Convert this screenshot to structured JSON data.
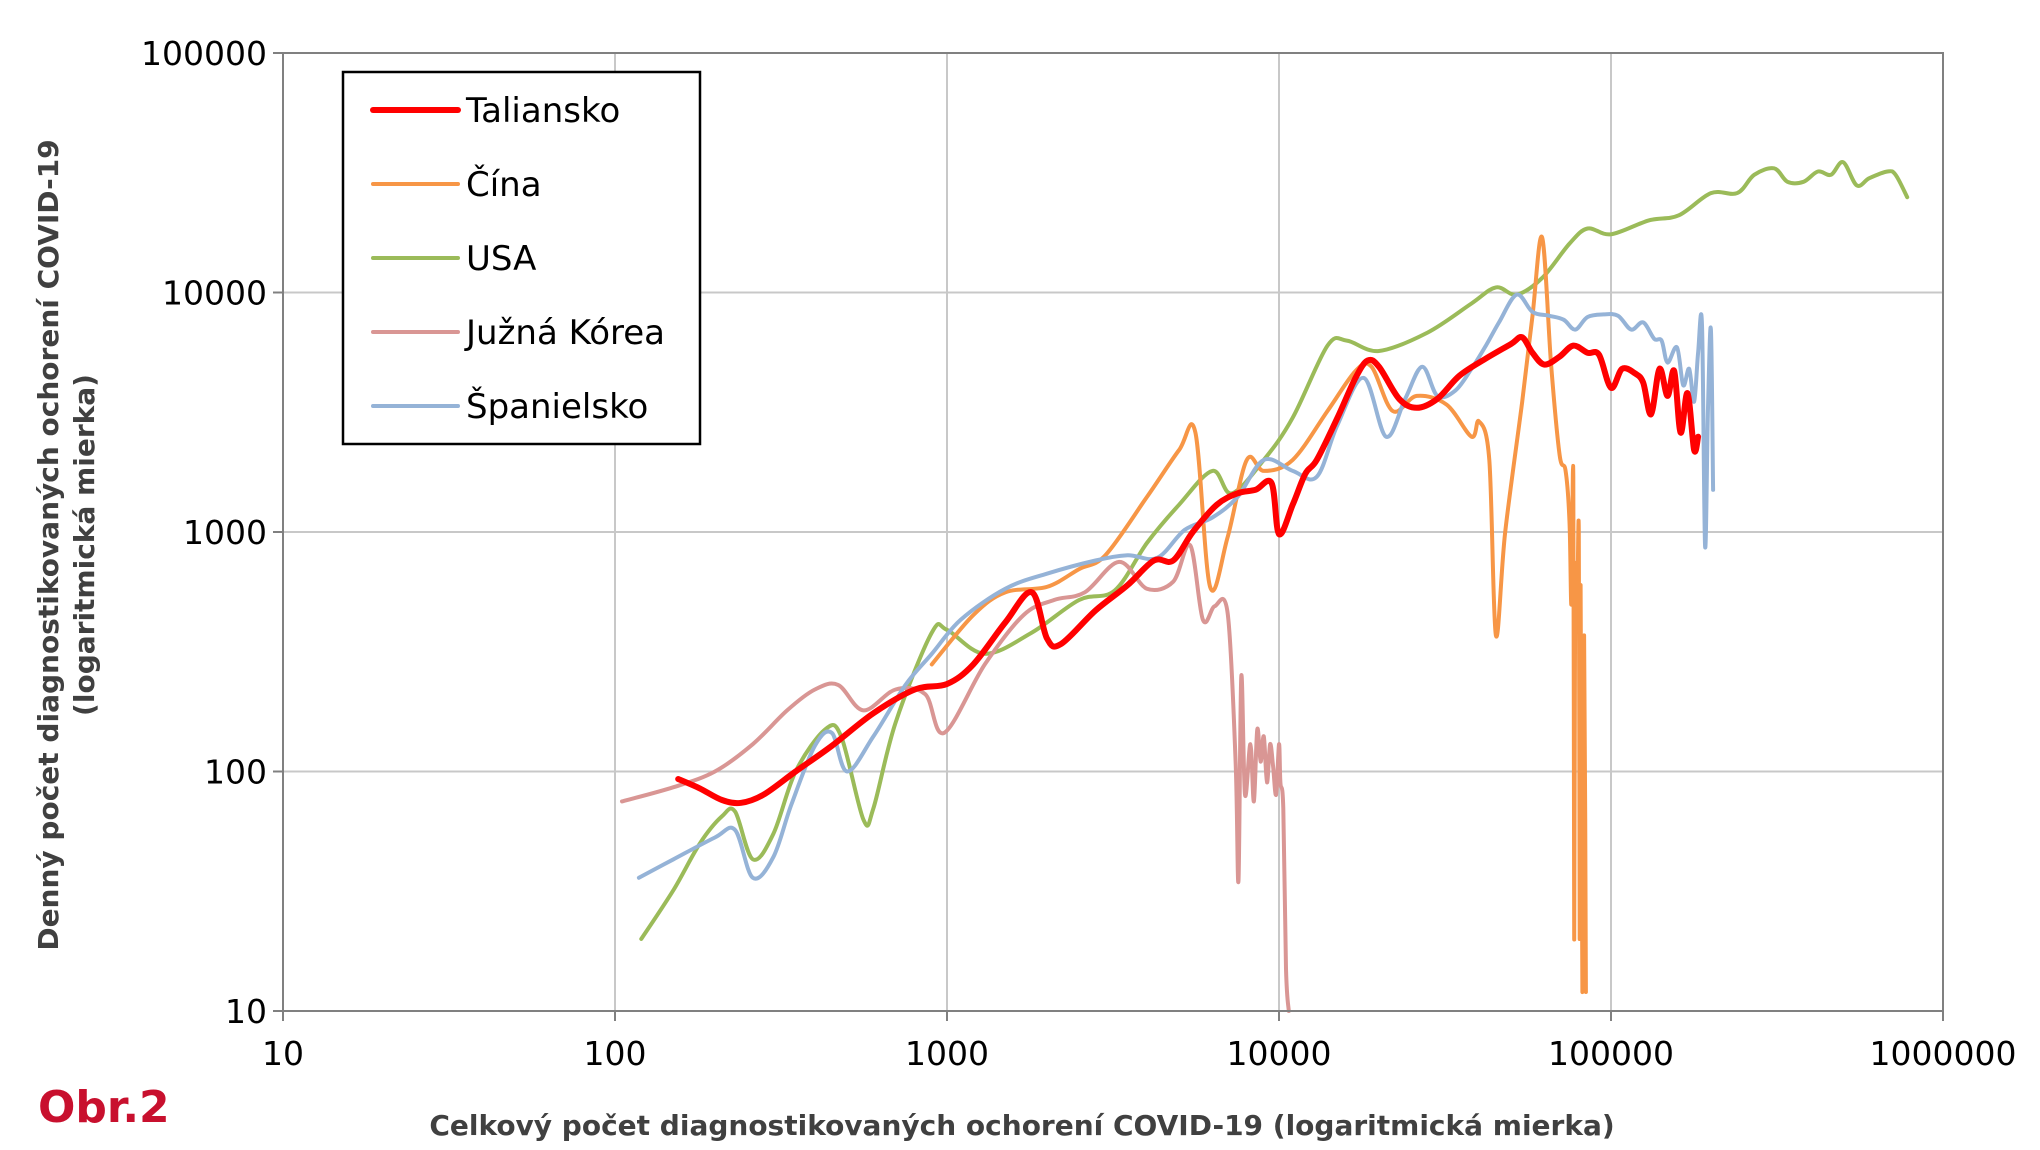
{
  "figure_label": "Obr.2",
  "chart_data": {
    "type": "line",
    "xlabel": "Celkový počet diagnostikovaných ochorení COVID-19 (logaritmická mierka)",
    "ylabel_lines": [
      "Denný počet diagnostikovaných ochorení COVID-19",
      "(logaritmická mierka)"
    ],
    "x_scale": "log",
    "y_scale": "log",
    "xlim": [
      10,
      1000000
    ],
    "ylim": [
      10,
      100000
    ],
    "x_ticks": [
      "10",
      "100",
      "1000",
      "10000",
      "100000",
      "1000000"
    ],
    "y_ticks": [
      "10",
      "100",
      "1000",
      "10000",
      "100000"
    ],
    "grid": true,
    "legend_position": "top-left",
    "series": [
      {
        "name": "Taliansko",
        "color": "#ff0000",
        "points": [
          [
            155,
            93
          ],
          [
            180,
            85
          ],
          [
            210,
            76
          ],
          [
            240,
            74
          ],
          [
            280,
            80
          ],
          [
            350,
            100
          ],
          [
            450,
            128
          ],
          [
            600,
            175
          ],
          [
            800,
            220
          ],
          [
            1000,
            232
          ],
          [
            1200,
            280
          ],
          [
            1500,
            420
          ],
          [
            1800,
            560
          ],
          [
            2000,
            360
          ],
          [
            2200,
            340
          ],
          [
            2800,
            470
          ],
          [
            3500,
            600
          ],
          [
            4200,
            760
          ],
          [
            4800,
            760
          ],
          [
            5500,
            1000
          ],
          [
            6500,
            1300
          ],
          [
            7500,
            1450
          ],
          [
            8500,
            1500
          ],
          [
            9500,
            1600
          ],
          [
            10000,
            980
          ],
          [
            11000,
            1300
          ],
          [
            12000,
            1750
          ],
          [
            13000,
            2000
          ],
          [
            15000,
            3000
          ],
          [
            17000,
            4400
          ],
          [
            18500,
            5200
          ],
          [
            20000,
            4900
          ],
          [
            23000,
            3600
          ],
          [
            26000,
            3300
          ],
          [
            30000,
            3600
          ],
          [
            35000,
            4500
          ],
          [
            42000,
            5300
          ],
          [
            50000,
            6100
          ],
          [
            54000,
            6500
          ],
          [
            58000,
            5600
          ],
          [
            63000,
            5000
          ],
          [
            70000,
            5400
          ],
          [
            77000,
            6000
          ],
          [
            85000,
            5600
          ],
          [
            92000,
            5500
          ],
          [
            100000,
            4000
          ],
          [
            108000,
            4800
          ],
          [
            118000,
            4600
          ],
          [
            125000,
            4200
          ],
          [
            132000,
            3100
          ],
          [
            140000,
            4800
          ],
          [
            148000,
            3700
          ],
          [
            155000,
            4700
          ],
          [
            162000,
            2600
          ],
          [
            170000,
            3800
          ],
          [
            178000,
            2200
          ],
          [
            183000,
            2500
          ]
        ]
      },
      {
        "name": "Čína",
        "color": "#f79646",
        "points": [
          [
            900,
            280
          ],
          [
            1200,
            450
          ],
          [
            1500,
            560
          ],
          [
            2000,
            590
          ],
          [
            2500,
            700
          ],
          [
            3000,
            800
          ],
          [
            4000,
            1400
          ],
          [
            5000,
            2200
          ],
          [
            5600,
            2600
          ],
          [
            6200,
            590
          ],
          [
            7000,
            950
          ],
          [
            8000,
            2000
          ],
          [
            9000,
            1800
          ],
          [
            11000,
            2000
          ],
          [
            14000,
            3200
          ],
          [
            17000,
            4700
          ],
          [
            19000,
            4900
          ],
          [
            22000,
            3200
          ],
          [
            26000,
            3700
          ],
          [
            32000,
            3400
          ],
          [
            38000,
            2500
          ],
          [
            40000,
            2900
          ],
          [
            43000,
            2000
          ],
          [
            45000,
            370
          ],
          [
            48000,
            1000
          ],
          [
            54000,
            3500
          ],
          [
            58000,
            8000
          ],
          [
            62000,
            17000
          ],
          [
            66000,
            5000
          ],
          [
            70000,
            2100
          ],
          [
            73000,
            1800
          ],
          [
            75000,
            1100
          ],
          [
            76000,
            500
          ],
          [
            77000,
            1700
          ],
          [
            77500,
            20
          ],
          [
            78000,
            650
          ],
          [
            79000,
            400
          ],
          [
            80000,
            1000
          ],
          [
            80500,
            20
          ],
          [
            81000,
            600
          ],
          [
            82000,
            12
          ],
          [
            83000,
            370
          ],
          [
            84000,
            12
          ]
        ]
      },
      {
        "name": "USA",
        "color": "#9bbb59",
        "points": [
          [
            120,
            20
          ],
          [
            150,
            32
          ],
          [
            180,
            50
          ],
          [
            210,
            65
          ],
          [
            230,
            68
          ],
          [
            260,
            43
          ],
          [
            300,
            55
          ],
          [
            350,
            100
          ],
          [
            430,
            150
          ],
          [
            480,
            140
          ],
          [
            560,
            63
          ],
          [
            600,
            70
          ],
          [
            700,
            160
          ],
          [
            900,
            380
          ],
          [
            1000,
            390
          ],
          [
            1300,
            310
          ],
          [
            1800,
            380
          ],
          [
            2500,
            520
          ],
          [
            3200,
            570
          ],
          [
            4000,
            900
          ],
          [
            5000,
            1300
          ],
          [
            6300,
            1800
          ],
          [
            7200,
            1450
          ],
          [
            9000,
            2000
          ],
          [
            11000,
            3000
          ],
          [
            14000,
            6000
          ],
          [
            16000,
            6300
          ],
          [
            20000,
            5700
          ],
          [
            28000,
            6800
          ],
          [
            38000,
            9000
          ],
          [
            45000,
            10500
          ],
          [
            52000,
            9800
          ],
          [
            62000,
            11500
          ],
          [
            75000,
            16000
          ],
          [
            85000,
            18500
          ],
          [
            100000,
            17500
          ],
          [
            130000,
            20000
          ],
          [
            160000,
            21000
          ],
          [
            200000,
            26000
          ],
          [
            240000,
            26000
          ],
          [
            270000,
            31000
          ],
          [
            310000,
            33000
          ],
          [
            340000,
            29000
          ],
          [
            380000,
            29000
          ],
          [
            420000,
            32000
          ],
          [
            460000,
            31000
          ],
          [
            500000,
            35000
          ],
          [
            550000,
            28000
          ],
          [
            600000,
            30000
          ],
          [
            680000,
            32000
          ],
          [
            720000,
            31000
          ],
          [
            780000,
            25000
          ]
        ]
      },
      {
        "name": "Južná Kórea",
        "color": "#d99694",
        "points": [
          [
            105,
            75
          ],
          [
            150,
            86
          ],
          [
            200,
            100
          ],
          [
            260,
            130
          ],
          [
            330,
            180
          ],
          [
            400,
            220
          ],
          [
            470,
            230
          ],
          [
            560,
            180
          ],
          [
            700,
            220
          ],
          [
            860,
            210
          ],
          [
            980,
            145
          ],
          [
            1300,
            280
          ],
          [
            1700,
            450
          ],
          [
            2100,
            520
          ],
          [
            2600,
            560
          ],
          [
            3300,
            750
          ],
          [
            4000,
            580
          ],
          [
            4800,
            620
          ],
          [
            5400,
            880
          ],
          [
            5900,
            430
          ],
          [
            6400,
            490
          ],
          [
            7000,
            460
          ],
          [
            7400,
            110
          ],
          [
            7550,
            35
          ],
          [
            7700,
            250
          ],
          [
            7900,
            80
          ],
          [
            8200,
            130
          ],
          [
            8400,
            75
          ],
          [
            8600,
            150
          ],
          [
            8800,
            110
          ],
          [
            9000,
            140
          ],
          [
            9200,
            90
          ],
          [
            9400,
            130
          ],
          [
            9600,
            105
          ],
          [
            9800,
            80
          ],
          [
            10000,
            130
          ],
          [
            10100,
            90
          ],
          [
            10300,
            70
          ],
          [
            10500,
            15
          ],
          [
            10700,
            10
          ]
        ]
      },
      {
        "name": "Španielsko",
        "color": "#95b3d7",
        "points": [
          [
            118,
            36
          ],
          [
            150,
            43
          ],
          [
            200,
            53
          ],
          [
            230,
            57
          ],
          [
            260,
            36
          ],
          [
            300,
            44
          ],
          [
            340,
            73
          ],
          [
            400,
            128
          ],
          [
            450,
            145
          ],
          [
            500,
            100
          ],
          [
            600,
            140
          ],
          [
            750,
            230
          ],
          [
            900,
            310
          ],
          [
            1100,
            430
          ],
          [
            1500,
            580
          ],
          [
            2000,
            670
          ],
          [
            2800,
            760
          ],
          [
            3500,
            800
          ],
          [
            4300,
            780
          ],
          [
            5200,
            1020
          ],
          [
            6300,
            1150
          ],
          [
            7500,
            1400
          ],
          [
            9000,
            2000
          ],
          [
            11000,
            1800
          ],
          [
            13000,
            1700
          ],
          [
            15000,
            2800
          ],
          [
            18000,
            4400
          ],
          [
            21000,
            2500
          ],
          [
            24000,
            3600
          ],
          [
            27000,
            4900
          ],
          [
            30000,
            3700
          ],
          [
            34000,
            3900
          ],
          [
            38000,
            4800
          ],
          [
            42000,
            6000
          ],
          [
            46000,
            7500
          ],
          [
            52000,
            9800
          ],
          [
            58000,
            8300
          ],
          [
            65000,
            8000
          ],
          [
            72000,
            7700
          ],
          [
            78000,
            7000
          ],
          [
            85000,
            7900
          ],
          [
            95000,
            8100
          ],
          [
            105000,
            8000
          ],
          [
            115000,
            7000
          ],
          [
            125000,
            7500
          ],
          [
            135000,
            6400
          ],
          [
            142000,
            6300
          ],
          [
            148000,
            5100
          ],
          [
            158000,
            5900
          ],
          [
            165000,
            4100
          ],
          [
            172000,
            4800
          ],
          [
            178000,
            3500
          ],
          [
            183000,
            5600
          ],
          [
            188000,
            7300
          ],
          [
            192000,
            870
          ],
          [
            196000,
            3300
          ],
          [
            200000,
            7000
          ],
          [
            203000,
            1500
          ]
        ]
      }
    ]
  }
}
